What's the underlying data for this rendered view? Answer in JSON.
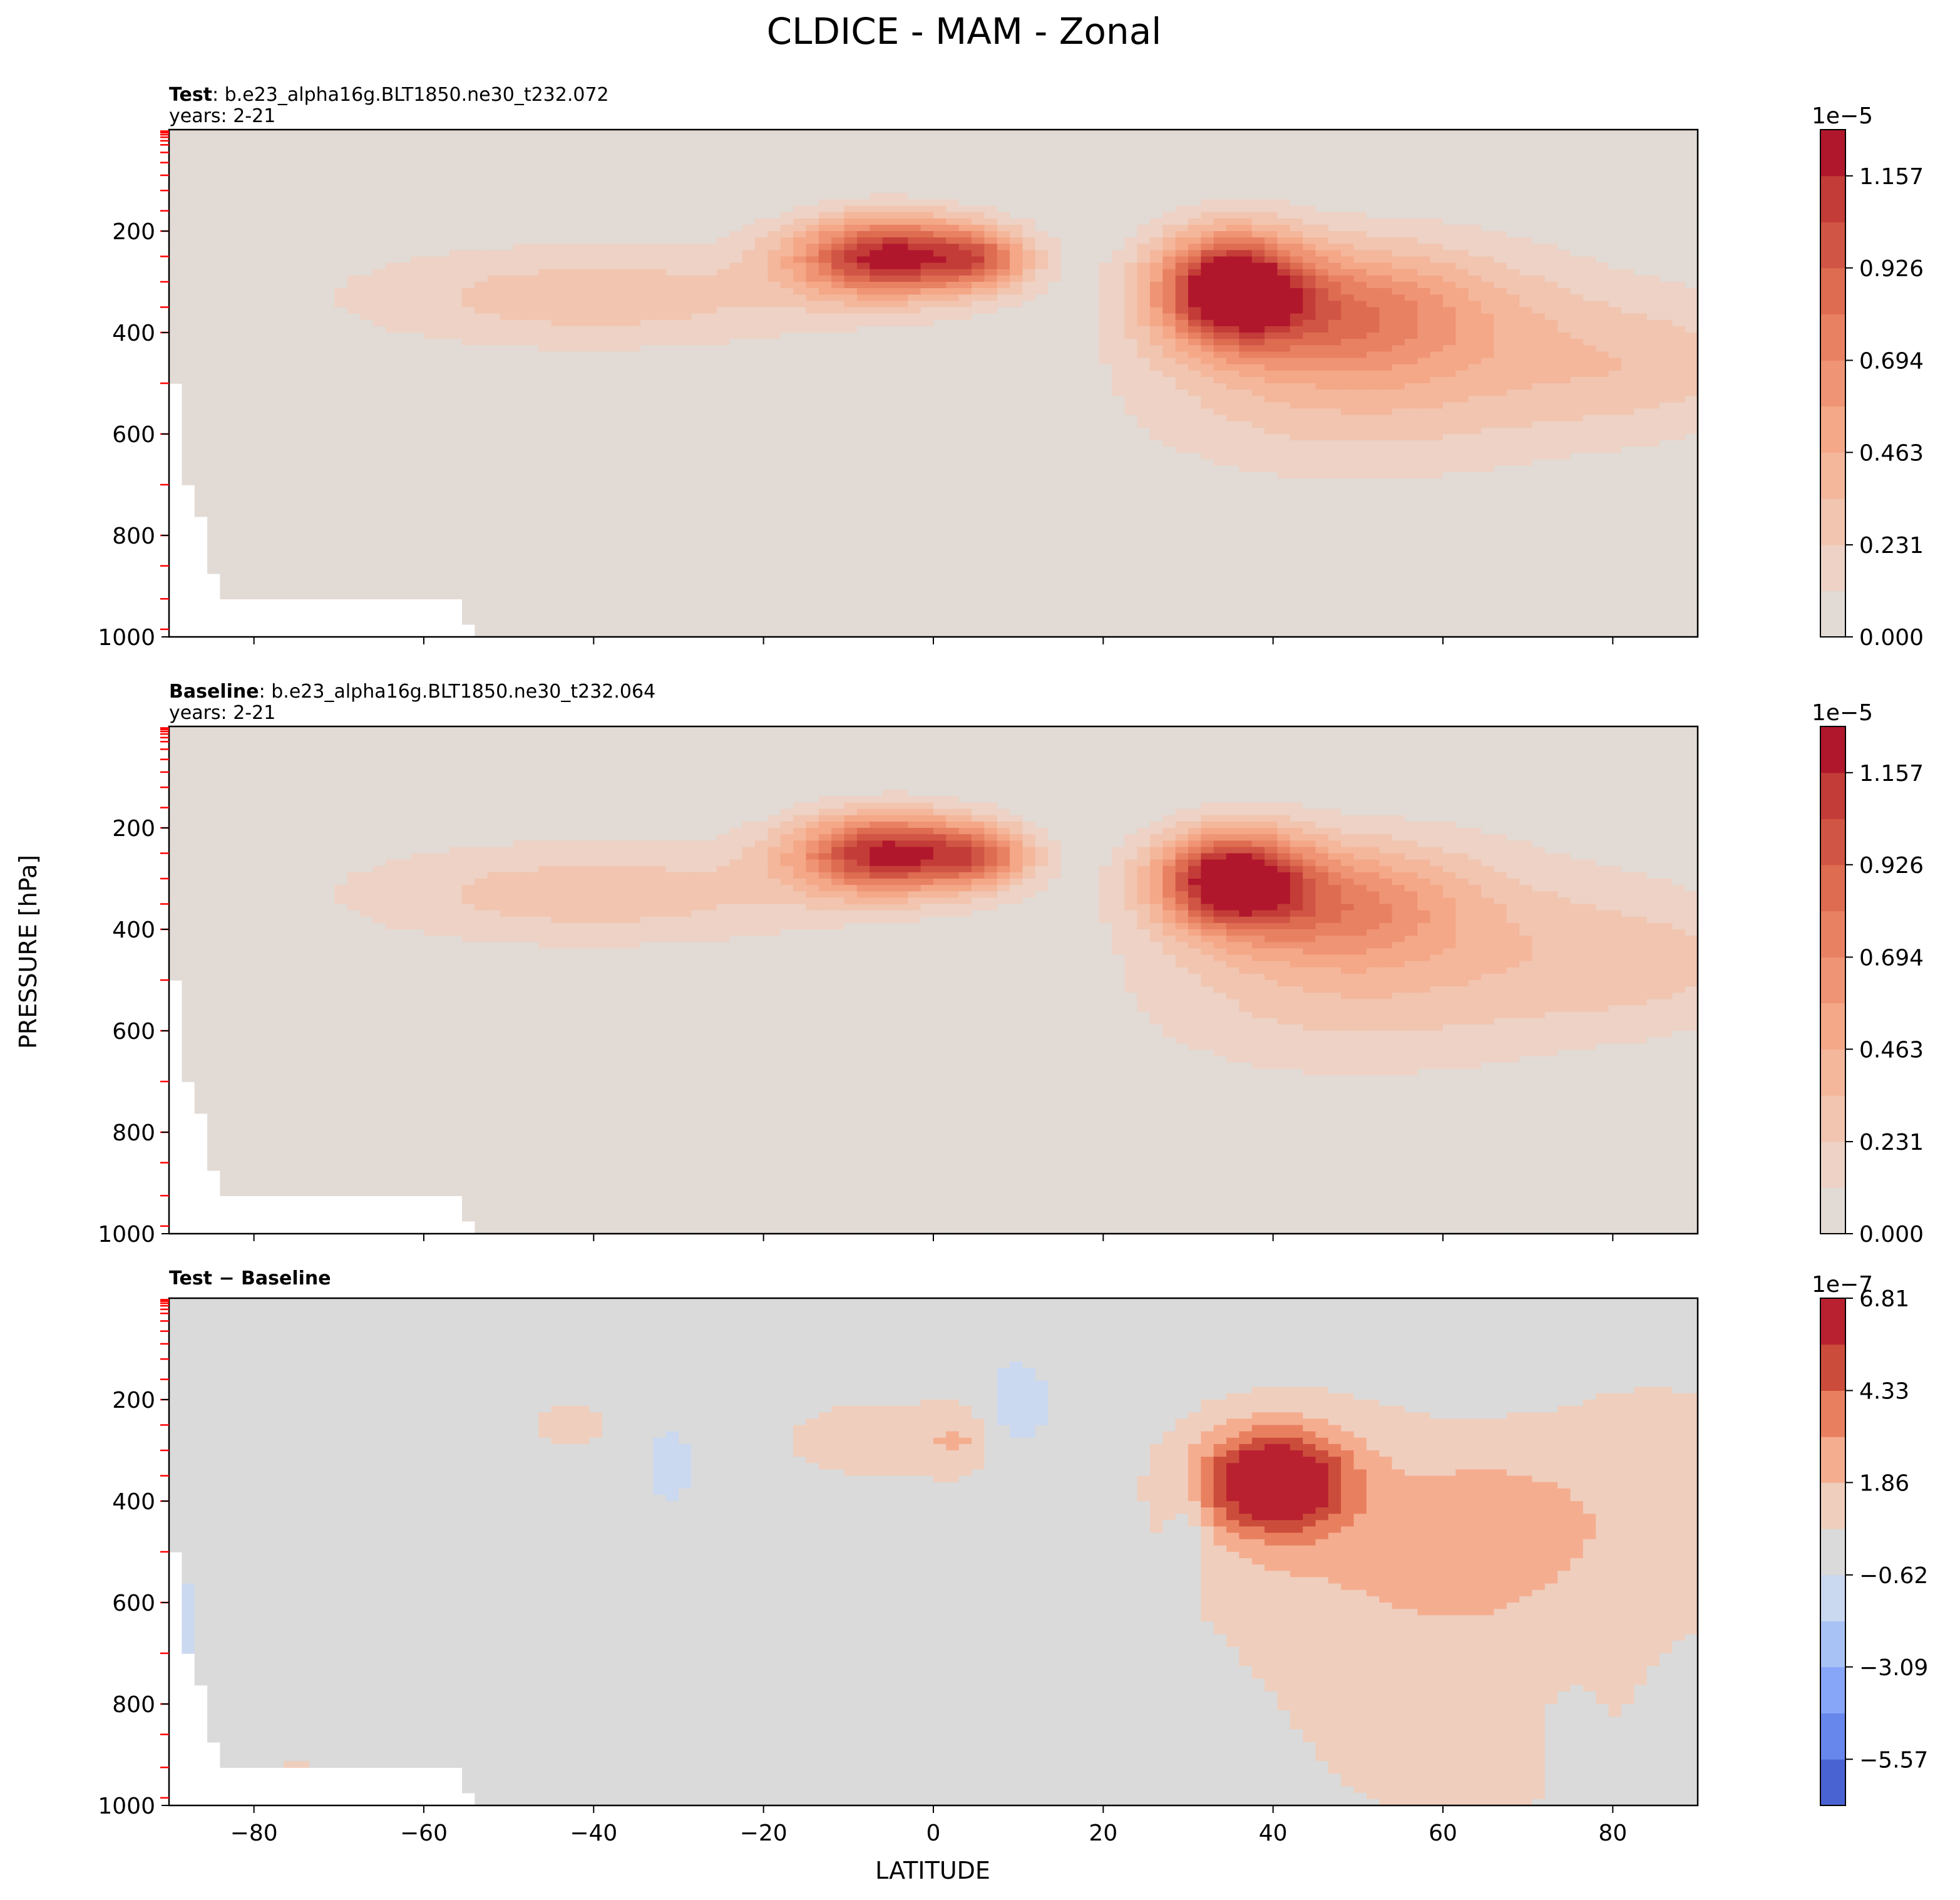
{
  "figure_title": "CLDICE - MAM - Zonal",
  "shared_xlabel": "LATITUDE",
  "shared_ylabel": "PRESSURE [hPa]",
  "colors": {
    "background_field": "#e2dad5",
    "diff_background": "#dadada",
    "blues": [
      "#cad8f0",
      "#a9c2f6",
      "#88a6f8",
      "#6887ec",
      "#4a63d3"
    ],
    "reds": [
      "#e2dad5",
      "#efcebd",
      "#f4c0a8",
      "#f5ad90",
      "#f29877",
      "#e8805f",
      "#dc654a",
      "#cc4c3b",
      "#b92130"
    ]
  },
  "chart_data": [
    {
      "type": "heatmap",
      "panel_label_bold": "Test",
      "panel_label_rest": ": b.e23_alpha16g.BLT1850.ne30_t232.072",
      "years": "years: 2-21",
      "xlim": [
        -90,
        90
      ],
      "ylim": [
        1000,
        0
      ],
      "x_ticks": [
        -80,
        -60,
        -40,
        -20,
        0,
        20,
        40,
        60,
        80
      ],
      "x_tick_labels": [
        "",
        "",
        "",
        "",
        "",
        "",
        "",
        "",
        ""
      ],
      "y_ticks": [
        200,
        400,
        600,
        800,
        1000
      ],
      "y_tick_labels": [
        "200",
        "400",
        "600",
        "800",
        "1000"
      ],
      "colorbar": {
        "multiplier": "1e−5",
        "levels": [
          0.0,
          0.116,
          0.231,
          0.347,
          0.463,
          0.579,
          0.694,
          0.81,
          0.926,
          1.041,
          1.157,
          1.273
        ],
        "tick_values": [
          0.0,
          0.231,
          0.463,
          0.694,
          0.926,
          1.157
        ],
        "tick_labels": [
          "0.000",
          "0.231",
          "0.463",
          "0.694",
          "0.926",
          "1.157"
        ],
        "cmap": "reds"
      },
      "features": [
        {
          "lat": -5,
          "p": 250,
          "sigma_lat": 8,
          "sigma_p": 55,
          "peak": 1.2
        },
        {
          "lat": 6,
          "p": 255,
          "sigma_lat": 4,
          "sigma_p": 40,
          "peak": 0.5
        },
        {
          "lat": 35,
          "p": 310,
          "sigma_lat": 6,
          "sigma_p": 75,
          "peak": 1.25
        },
        {
          "lat": 48,
          "p": 360,
          "sigma_lat": 12,
          "sigma_p": 90,
          "peak": 0.6
        },
        {
          "lat": 60,
          "p": 430,
          "sigma_lat": 22,
          "sigma_p": 150,
          "peak": 0.25
        },
        {
          "lat": -40,
          "p": 330,
          "sigma_lat": 22,
          "sigma_p": 75,
          "peak": 0.3
        },
        {
          "lat": 85,
          "p": 470,
          "sigma_lat": 12,
          "sigma_p": 90,
          "peak": 0.18
        },
        {
          "lat": 45,
          "p": 560,
          "sigma_lat": 18,
          "sigma_p": 110,
          "peak": 0.14
        }
      ]
    },
    {
      "type": "heatmap",
      "panel_label_bold": "Baseline",
      "panel_label_rest": ": b.e23_alpha16g.BLT1850.ne30_t232.064",
      "years": "years: 2-21",
      "xlim": [
        -90,
        90
      ],
      "ylim": [
        1000,
        0
      ],
      "x_ticks": [
        -80,
        -60,
        -40,
        -20,
        0,
        20,
        40,
        60,
        80
      ],
      "x_tick_labels": [
        "",
        "",
        "",
        "",
        "",
        "",
        "",
        "",
        ""
      ],
      "y_ticks": [
        200,
        400,
        600,
        800,
        1000
      ],
      "y_tick_labels": [
        "200",
        "400",
        "600",
        "800",
        "1000"
      ],
      "colorbar": {
        "multiplier": "1e−5",
        "levels": [
          0.0,
          0.116,
          0.231,
          0.347,
          0.463,
          0.579,
          0.694,
          0.81,
          0.926,
          1.041,
          1.157,
          1.273
        ],
        "tick_values": [
          0.0,
          0.231,
          0.463,
          0.694,
          0.926,
          1.157
        ],
        "tick_labels": [
          "0.000",
          "0.231",
          "0.463",
          "0.694",
          "0.926",
          "1.157"
        ],
        "cmap": "reds"
      },
      "features": [
        {
          "lat": -5,
          "p": 250,
          "sigma_lat": 8,
          "sigma_p": 55,
          "peak": 1.18
        },
        {
          "lat": 6,
          "p": 255,
          "sigma_lat": 4,
          "sigma_p": 40,
          "peak": 0.5
        },
        {
          "lat": 35,
          "p": 300,
          "sigma_lat": 6,
          "sigma_p": 65,
          "peak": 1.2
        },
        {
          "lat": 47,
          "p": 350,
          "sigma_lat": 11,
          "sigma_p": 85,
          "peak": 0.55
        },
        {
          "lat": 60,
          "p": 430,
          "sigma_lat": 22,
          "sigma_p": 150,
          "peak": 0.24
        },
        {
          "lat": -40,
          "p": 330,
          "sigma_lat": 22,
          "sigma_p": 75,
          "peak": 0.3
        },
        {
          "lat": 85,
          "p": 470,
          "sigma_lat": 12,
          "sigma_p": 90,
          "peak": 0.17
        },
        {
          "lat": 45,
          "p": 560,
          "sigma_lat": 18,
          "sigma_p": 110,
          "peak": 0.13
        }
      ]
    },
    {
      "type": "heatmap",
      "panel_label_bold": "Test − Baseline",
      "panel_label_rest": "",
      "years": "",
      "xlabel": "LATITUDE",
      "xlim": [
        -90,
        90
      ],
      "ylim": [
        1000,
        0
      ],
      "x_ticks": [
        -80,
        -60,
        -40,
        -20,
        0,
        20,
        40,
        60,
        80
      ],
      "x_tick_labels": [
        "−80",
        "−60",
        "−40",
        "−20",
        "0",
        "20",
        "40",
        "60",
        "80"
      ],
      "y_ticks": [
        200,
        400,
        600,
        800,
        1000
      ],
      "y_tick_labels": [
        "200",
        "400",
        "600",
        "800",
        "1000"
      ],
      "colorbar": {
        "multiplier": "1e−7",
        "levels": [
          -6.81,
          -5.57,
          -4.33,
          -3.09,
          -1.86,
          -0.62,
          0.62,
          1.86,
          3.09,
          4.33,
          5.57,
          6.81
        ],
        "tick_values": [
          -5.57,
          -3.09,
          -0.62,
          1.86,
          4.33,
          6.81
        ],
        "tick_labels": [
          "−5.57",
          "−3.09",
          "−0.62",
          "1.86",
          "4.33",
          "6.81"
        ],
        "cmap": "diverging"
      },
      "features": [
        {
          "lat": 40,
          "p": 360,
          "sigma_lat": 6,
          "sigma_p": 70,
          "peak": 7.5
        },
        {
          "lat": 45,
          "p": 450,
          "sigma_lat": 12,
          "sigma_p": 170,
          "peak": 1.6
        },
        {
          "lat": 65,
          "p": 450,
          "sigma_lat": 8,
          "sigma_p": 100,
          "peak": 2.0
        },
        {
          "lat": 62,
          "p": 780,
          "sigma_lat": 14,
          "sigma_p": 200,
          "peak": 1.4
        },
        {
          "lat": 85,
          "p": 400,
          "sigma_lat": 12,
          "sigma_p": 180,
          "peak": 1.3
        },
        {
          "lat": -5,
          "p": 280,
          "sigma_lat": 10,
          "sigma_p": 60,
          "peak": 1.3
        },
        {
          "lat": 3,
          "p": 280,
          "sigma_lat": 2.5,
          "sigma_p": 40,
          "peak": 1.2
        },
        {
          "lat": -43,
          "p": 250,
          "sigma_lat": 4,
          "sigma_p": 35,
          "peak": 1.1
        },
        {
          "lat": 10,
          "p": 220,
          "sigma_lat": 3,
          "sigma_p": 70,
          "peak": -1.5
        },
        {
          "lat": -31,
          "p": 330,
          "sigma_lat": 1.8,
          "sigma_p": 55,
          "peak": -1.4
        },
        {
          "lat": 30,
          "p": 460,
          "sigma_lat": 1.5,
          "sigma_p": 60,
          "peak": -1.4
        },
        {
          "lat": 75,
          "p": 860,
          "sigma_lat": 2,
          "sigma_p": 60,
          "peak": -1.4
        },
        {
          "lat": -88,
          "p": 640,
          "sigma_lat": 1.5,
          "sigma_p": 70,
          "peak": -1.2
        },
        {
          "lat": -75,
          "p": 935,
          "sigma_lat": 1.2,
          "sigma_p": 30,
          "peak": 1.1
        }
      ]
    }
  ]
}
